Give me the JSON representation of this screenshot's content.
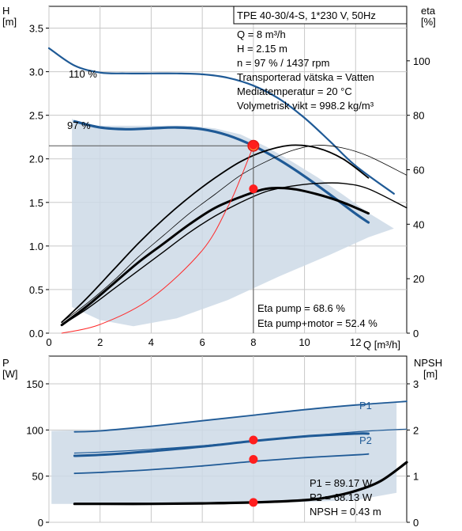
{
  "chart_data": [
    {
      "type": "line",
      "xlabel": "Q [m³/h]",
      "ylabel_left_unit": "H",
      "ylabel_left_bracket": "[m]",
      "ylabel_right_unit": "eta",
      "ylabel_right_bracket": "[%]",
      "xlim": [
        0,
        14
      ],
      "ylim_left": [
        0,
        3.75
      ],
      "ylim_right": [
        0,
        120
      ],
      "x_ticks": [
        "0",
        "2",
        "4",
        "6",
        "8",
        "10",
        "12"
      ],
      "y_left_ticks": [
        "0.0",
        "0.5",
        "1.0",
        "1.5",
        "2.0",
        "2.5",
        "3.0",
        "3.5"
      ],
      "y_right_ticks": [
        "0",
        "20",
        "40",
        "60",
        "80",
        "100"
      ],
      "grid": true,
      "info_box": [
        "TPE 40-30/4-S, 1*230 V, 50Hz",
        "Q = 8 m³/h",
        "H = 2.15 m",
        "n = 97 % / 1437 rpm",
        "Transporterad vätska = Vatten",
        "Mediatemperatur = 20 °C",
        "Volymetrisk vikt = 998.2 kg/m³"
      ],
      "eta_texts": [
        "Eta pump = 68.6 %",
        "Eta pump+motor = 52.4 %"
      ],
      "series": [
        {
          "name": "110 %",
          "axis": "left",
          "x": [
            0,
            1,
            2,
            3,
            4,
            5,
            6,
            7,
            8,
            9,
            10,
            11,
            12,
            13.5
          ],
          "y": [
            3.27,
            3.07,
            2.99,
            2.98,
            2.98,
            2.98,
            2.97,
            2.93,
            2.84,
            2.69,
            2.47,
            2.2,
            1.92,
            1.6
          ]
        },
        {
          "name": "97 %",
          "axis": "left",
          "x": [
            1,
            2,
            3,
            4,
            5,
            6,
            7,
            8,
            9,
            10,
            11,
            12,
            12.5
          ],
          "y": [
            2.43,
            2.36,
            2.34,
            2.35,
            2.36,
            2.34,
            2.27,
            2.15,
            1.99,
            1.8,
            1.59,
            1.37,
            1.27
          ]
        },
        {
          "name": "",
          "axis": "right",
          "x": [
            0.5,
            1.5,
            2.5,
            3.5,
            4.5,
            5.5,
            6.5,
            7.5,
            8.5,
            9.5,
            10.5,
            11.5,
            12.5
          ],
          "y": [
            4,
            13,
            23,
            33,
            42,
            50,
            57,
            63,
            67,
            69,
            68,
            64,
            57
          ]
        },
        {
          "name": "",
          "axis": "right",
          "x": [
            0.5,
            1.5,
            2.5,
            3.5,
            4.5,
            5.5,
            6.5,
            7.5,
            8.5,
            9.5,
            10.5,
            11.5,
            12.5,
            14
          ],
          "y": [
            4,
            11,
            19,
            28,
            36,
            44,
            51,
            58,
            63,
            67,
            69,
            68,
            65,
            58
          ]
        },
        {
          "name": "",
          "axis": "right",
          "x": [
            0.5,
            1.5,
            2.5,
            3.5,
            4.5,
            5.5,
            6.5,
            7.5,
            8.5,
            9.5,
            10.5,
            11.5,
            12.5
          ],
          "y": [
            3,
            10,
            18,
            26,
            33,
            40,
            46,
            50,
            53,
            53,
            51,
            48,
            44
          ]
        },
        {
          "name": "",
          "axis": "right",
          "x": [
            0.5,
            1.5,
            2.5,
            3.5,
            4.5,
            5.5,
            6.5,
            7.5,
            8.5,
            9.5,
            10.5,
            11.5,
            12.5,
            14
          ],
          "y": [
            3,
            9,
            16,
            23,
            30,
            37,
            43,
            48,
            52,
            54,
            55,
            55,
            53,
            46
          ]
        },
        {
          "name": "",
          "axis": "left",
          "x": [
            0.5,
            2,
            4,
            6,
            7,
            7.5,
            8
          ],
          "y": [
            0.0,
            0.1,
            0.4,
            0.95,
            1.45,
            1.78,
            2.15
          ]
        }
      ],
      "area": {
        "x": [
          0.9,
          1.5,
          2.5,
          3.5,
          4.5,
          5.5,
          6.5,
          7.5,
          8.5,
          9.5,
          10.5,
          11.5,
          12.5,
          13.5,
          12.5,
          11,
          9,
          7,
          5,
          3.3,
          2,
          0.9
        ],
        "y": [
          2.46,
          2.38,
          2.38,
          2.38,
          2.38,
          2.38,
          2.35,
          2.28,
          2.14,
          1.97,
          1.79,
          1.59,
          1.38,
          1.2,
          1.1,
          0.9,
          0.65,
          0.38,
          0.17,
          0.08,
          0.15,
          0.3
        ]
      },
      "operating_points": [
        {
          "x": 8,
          "y": 2.15,
          "axis": "left",
          "style": "ring"
        },
        {
          "x": 8,
          "y": 69,
          "axis": "right",
          "style": "dot"
        },
        {
          "x": 8,
          "y": 53,
          "axis": "right",
          "style": "dot"
        }
      ]
    },
    {
      "type": "line",
      "ylabel_left_unit": "P",
      "ylabel_left_bracket": "[W]",
      "ylabel_right_unit": "NPSH",
      "ylabel_right_bracket": "[m]",
      "xlim": [
        0,
        14
      ],
      "ylim_left": [
        0,
        180
      ],
      "ylim_right": [
        0,
        3.6
      ],
      "y_left_ticks": [
        "0",
        "50",
        "100",
        "150"
      ],
      "y_right_ticks": [
        "0",
        "1",
        "2",
        "3"
      ],
      "grid": true,
      "info_texts": [
        "P1 = 89.17 W",
        "P2 = 68.13 W",
        "NPSH = 0.43 m"
      ],
      "series": [
        {
          "name": "P1",
          "axis": "left",
          "x": [
            1,
            2,
            4,
            6,
            8,
            10,
            12,
            14
          ],
          "y": [
            98,
            99,
            104,
            110,
            116,
            122,
            127,
            131
          ]
        },
        {
          "name": "",
          "axis": "left",
          "x": [
            1,
            2,
            4,
            6,
            8,
            10,
            12,
            12.5
          ],
          "y": [
            72,
            73,
            77,
            82,
            88,
            93,
            96,
            96
          ]
        },
        {
          "name": "P2",
          "axis": "left",
          "x": [
            1,
            2,
            4,
            6,
            8,
            10,
            12,
            14
          ],
          "y": [
            75,
            76,
            79,
            83,
            88,
            93,
            98,
            101
          ]
        },
        {
          "name": "",
          "axis": "left",
          "x": [
            1,
            2,
            4,
            6,
            8,
            10,
            12,
            12.5
          ],
          "y": [
            53,
            54,
            57,
            61,
            66,
            70,
            73,
            74
          ]
        },
        {
          "name": "",
          "axis": "right",
          "x": [
            1,
            2,
            4,
            6,
            8,
            10,
            11,
            12,
            13,
            14
          ],
          "y": [
            0.4,
            0.4,
            0.4,
            0.41,
            0.43,
            0.48,
            0.55,
            0.68,
            0.9,
            1.3
          ]
        }
      ],
      "area": {
        "x": [
          0.1,
          2,
          4,
          6,
          8,
          10,
          12,
          13.6,
          13.6,
          12,
          10,
          8,
          6,
          4,
          2,
          0.1
        ],
        "y": [
          99,
          100,
          105,
          111,
          117,
          123,
          128,
          131,
          32,
          24,
          22,
          21,
          20,
          20,
          20,
          20
        ]
      },
      "operating_points": [
        {
          "x": 8,
          "y": 89.17,
          "axis": "left",
          "style": "dot"
        },
        {
          "x": 8,
          "y": 68.13,
          "axis": "left",
          "style": "dot"
        },
        {
          "x": 8,
          "y": 0.43,
          "axis": "right",
          "style": "dot"
        }
      ]
    }
  ]
}
